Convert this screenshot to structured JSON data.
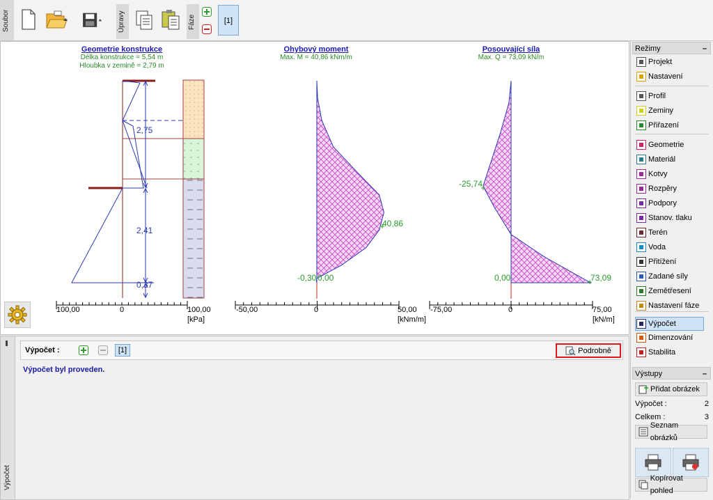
{
  "toolbar": {
    "soubor_label": "Soubor",
    "upravy_label": "Úpravy",
    "faze_label": "Fáze",
    "stage_tab": "[1]"
  },
  "geometry_panel": {
    "title": "Geometrie konstrukce",
    "line1": "Délka konstrukce = 5,54 m",
    "line2": "Hloubka v zemině = 2,79 m",
    "dim1": "2,75",
    "dim2": "2,41",
    "dim3": "0,37",
    "axis_left": "100,00",
    "axis_zero": "0",
    "axis_right": "100,00",
    "unit": "[kPa]"
  },
  "moment_panel": {
    "title": "Ohybový moment",
    "subtitle": "Max. M = 40,86 kNm/m",
    "max_label": "40,86",
    "bottom_label": "-0,30",
    "bottom_label2": "0,00",
    "axis_left": "-50,00",
    "axis_zero": "0",
    "axis_right": "50,00",
    "unit": "[kNm/m]"
  },
  "shear_panel": {
    "title": "Posouvající síla",
    "subtitle": "Max. Q = 73,09 kN/m",
    "min_label": "-25,74",
    "bottom_left_label": "0,00",
    "max_label": "73,09",
    "axis_left": "-75,00",
    "axis_zero": "0",
    "axis_right": "75,00",
    "unit": "[kN/m]"
  },
  "chart_data": [
    {
      "type": "line",
      "title": "Ohybový moment",
      "subtitle": "Max. M = 40,86 kNm/m",
      "xlim": [
        -50,
        50
      ],
      "unit": "[kNm/m]",
      "series": [
        {
          "values": [
            [
              0,
              0
            ],
            [
              0.5,
              0.4
            ],
            [
              3,
              0.9
            ],
            [
              10,
              1.5
            ],
            [
              25,
              2.1
            ],
            [
              38,
              2.6
            ],
            [
              40.86,
              3.0
            ],
            [
              38,
              3.4
            ],
            [
              30,
              3.8
            ],
            [
              15,
              4.2
            ],
            [
              0,
              4.5
            ],
            [
              -0.3,
              4.56
            ],
            [
              0,
              4.6
            ]
          ]
        }
      ],
      "annotations": [
        "40,86",
        "-0,30",
        "0,00"
      ]
    },
    {
      "type": "line",
      "title": "Posouvající síla",
      "subtitle": "Max. Q = 73,09 kN/m",
      "xlim": [
        -75,
        75
      ],
      "unit": "[kN/m]",
      "series": [
        {
          "values": [
            [
              0,
              0
            ],
            [
              -2,
              0.5
            ],
            [
              -10,
              1.2
            ],
            [
              -25.74,
              2.4
            ],
            [
              -15,
              2.9
            ],
            [
              0,
              3.5
            ],
            [
              30,
              4.0
            ],
            [
              73.09,
              4.6
            ]
          ]
        }
      ],
      "annotations": [
        "-25,74",
        "0,00",
        "73,09"
      ]
    }
  ],
  "bottom_panel": {
    "label": "Výpočet :",
    "stage": "[1]",
    "detail_button": "Podrobně",
    "message": "Výpočet byl proveden.",
    "side_label": "Výpočet"
  },
  "right_panel": {
    "modes_header": "Režimy",
    "items": [
      "Projekt",
      "Nastavení",
      "Profil",
      "Zeminy",
      "Přiřazení",
      "Geometrie",
      "Materiál",
      "Kotvy",
      "Rozpěry",
      "Podpory",
      "Stanov. tlaku",
      "Terén",
      "Voda",
      "Přitížení",
      "Zadané síly",
      "Zemětřesení",
      "Nastavení fáze",
      "Výpočet",
      "Dimenzování",
      "Stabilita"
    ],
    "outputs_header": "Výstupy",
    "add_picture": "Přidat obrázek",
    "calc_label": "Výpočet :",
    "calc_count": "2",
    "total_label": "Celkem :",
    "total_count": "3",
    "list_pictures": "Seznam obrázků",
    "copy_view": "Kopírovat pohled"
  }
}
